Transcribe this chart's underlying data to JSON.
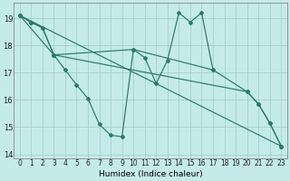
{
  "xlabel": "Humidex (Indice chaleur)",
  "xlim": [
    -0.5,
    23.5
  ],
  "ylim": [
    13.85,
    19.55
  ],
  "yticks": [
    14,
    15,
    16,
    17,
    18,
    19
  ],
  "xticks": [
    0,
    1,
    2,
    3,
    4,
    5,
    6,
    7,
    8,
    9,
    10,
    11,
    12,
    13,
    14,
    15,
    16,
    17,
    18,
    19,
    20,
    21,
    22,
    23
  ],
  "bg_color": "#c5eaea",
  "line_color": "#2a7a6a",
  "grid_color": "#a5d0d0",
  "line1_x": [
    0,
    1,
    2,
    3,
    4,
    5,
    6,
    7,
    8,
    9,
    10,
    11,
    12,
    13,
    14,
    15,
    16,
    17
  ],
  "line1_y": [
    19.1,
    18.85,
    18.65,
    17.65,
    17.1,
    16.55,
    16.05,
    15.1,
    14.7,
    14.65,
    17.85,
    17.55,
    16.6,
    17.45,
    19.2,
    18.85,
    19.2,
    17.1
  ],
  "line2_x": [
    0,
    1,
    2,
    3,
    20,
    21,
    22,
    23
  ],
  "line2_y": [
    19.1,
    18.85,
    18.65,
    17.65,
    16.3,
    15.85,
    15.15,
    14.3
  ],
  "line3_x": [
    0,
    23
  ],
  "line3_y": [
    19.1,
    14.3
  ],
  "line4_x": [
    0,
    3,
    10,
    17,
    20,
    21,
    22,
    23
  ],
  "line4_y": [
    19.1,
    17.65,
    17.85,
    17.1,
    16.3,
    15.85,
    15.15,
    14.3
  ]
}
